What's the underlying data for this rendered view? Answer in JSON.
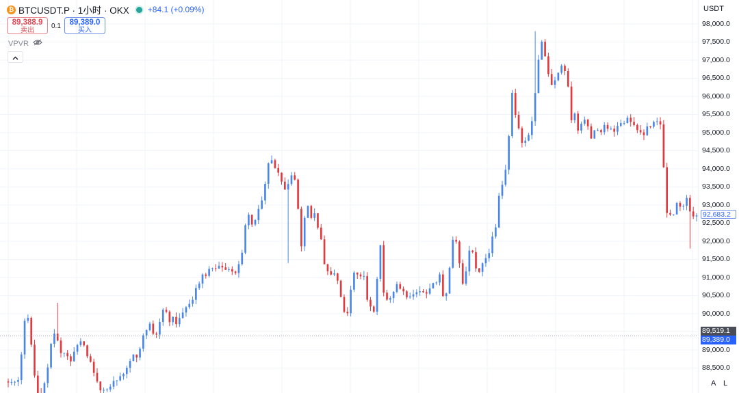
{
  "header": {
    "symbol": "BTCUSDT.P · 1小时 · OKX",
    "coin_icon": "bitcoin-icon",
    "status_color": "#26a69a",
    "change": "+84.1 (+0.09%)"
  },
  "trade": {
    "sell_price": "89,388.9",
    "sell_label": "卖出",
    "quantity": "0.1",
    "buy_price": "89,389.0",
    "buy_label": "买入"
  },
  "indicator": {
    "name": "VPVR",
    "icon": "eye-hidden-icon"
  },
  "collapse_icon": "chevron-up-icon",
  "axis": {
    "currency": "USDT",
    "auto_label": "A",
    "log_label": "L"
  },
  "price_tags": {
    "bid_highlight": "89,519.1",
    "last_price": "89,389.0",
    "marker": "92,683.2"
  },
  "colors": {
    "up": "#4a86e8",
    "down": "#e0393e",
    "grid": "#f0f3fa",
    "axis_text": "#131722"
  },
  "chart_data": {
    "type": "candlestick",
    "title": "BTCUSDT.P · 1小时 · OKX",
    "y_ticks": [
      88500,
      89000,
      89500,
      90000,
      90500,
      91000,
      91500,
      92000,
      92500,
      93000,
      93500,
      94000,
      94500,
      95000,
      95500,
      96000,
      96500,
      97000,
      97500,
      98000
    ],
    "y_tick_labels": [
      "88,500.0",
      "89,000.0",
      "89,500.0",
      "90,000.0",
      "90,500.0",
      "91,000.0",
      "91,500.0",
      "92,000.0",
      "92,500.0",
      "93,000.0",
      "93,500.0",
      "94,000.0",
      "94,500.0",
      "95,000.0",
      "95,500.0",
      "96,000.0",
      "96,500.0",
      "97,000.0",
      "97,500.0",
      "98,000.0"
    ],
    "ylim": [
      88000,
      98170
    ],
    "path_keypoints": [
      88130,
      88110,
      88110,
      88080,
      88200,
      89100,
      90100,
      89700,
      88800,
      87900,
      87700,
      88000,
      88200,
      89100,
      89500,
      89300,
      88950,
      88900,
      88850,
      88700,
      88950,
      89200,
      89250,
      89100,
      88700,
      88600,
      88200,
      88000,
      87850,
      87900,
      87950,
      88150,
      88100,
      88300,
      88350,
      88500,
      88700,
      88900,
      88800,
      89100,
      89500,
      89600,
      89800,
      89300,
      89500,
      90050,
      90250,
      89700,
      90000,
      89700,
      89900,
      90000,
      90200,
      90300,
      90400,
      90700,
      90800,
      91100,
      91000,
      91300,
      91200,
      91300,
      91400,
      91100,
      91300,
      91200,
      91100,
      91300,
      91500,
      92400,
      92800,
      92500,
      92600,
      92900,
      93200,
      93700,
      94300,
      94200,
      94000,
      93800,
      93600,
      93300,
      93900,
      93800,
      93500,
      91600,
      92600,
      93000,
      92600,
      92800,
      92400,
      92000,
      91300,
      91200,
      91000,
      91200,
      90800,
      90300,
      89900,
      90200,
      91100,
      91200,
      90900,
      91300,
      90400,
      90200,
      90000,
      90900,
      91900,
      90500,
      90400,
      90400,
      90700,
      90800,
      90700,
      90600,
      90400,
      90500,
      90600,
      90600,
      90700,
      90500,
      90700,
      90900,
      90800,
      91100,
      90500,
      90600,
      91300,
      92200,
      91900,
      91200,
      90700,
      91400,
      92000,
      91400,
      91100,
      91300,
      91600,
      91500,
      92100,
      92200,
      93200,
      93500,
      94000,
      95000,
      96200,
      95400,
      95000,
      94600,
      94900,
      95000,
      95600,
      96500,
      97600,
      97300,
      96700,
      96300,
      96400,
      96600,
      96900,
      96700,
      96300,
      95300,
      95600,
      95000,
      95300,
      95400,
      95100,
      94700,
      95400,
      94800,
      95300,
      95100,
      95200,
      95000,
      95100,
      95300,
      95200,
      95400,
      95300,
      95200,
      95100,
      95000,
      94900,
      95300,
      95100,
      95400,
      95300,
      95200,
      92700,
      92800,
      92600,
      93100,
      93000,
      92900,
      93200,
      92800,
      92700
    ],
    "highs": [
      {
        "t": 15,
        "v": 90300
      },
      {
        "t": 160,
        "v": 97800
      }
    ],
    "lows": [
      {
        "t": 85,
        "v": 91400
      },
      {
        "t": 207,
        "v": 91800
      }
    ],
    "candle_count": 210,
    "seed": 20250607
  }
}
